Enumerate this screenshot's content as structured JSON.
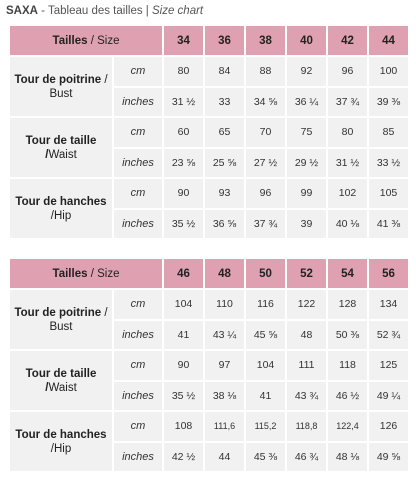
{
  "title": {
    "brand": "SAXA",
    "separator": " - ",
    "text": "Tableau des tailles |",
    "text_en": " Size chart"
  },
  "tables": [
    {
      "header": {
        "label_fr": "Tailles",
        "label_sep": " / ",
        "label_en": "Size",
        "sizes": [
          "34",
          "36",
          "38",
          "40",
          "42",
          "44"
        ]
      },
      "sections": [
        {
          "name_fr": "Tour de poitrine",
          "name_en": " / Bust",
          "rows": [
            {
              "unit": "cm",
              "values": [
                "80",
                "84",
                "88",
                "92",
                "96",
                "100"
              ]
            },
            {
              "unit": "inches",
              "values": [
                "31 ½",
                "33",
                "34 ⅝",
                "36 ¼",
                "37 ¾",
                "39 ⅜"
              ]
            }
          ]
        },
        {
          "name_fr": "Tour de taille /",
          "name_en": "Waist",
          "rows": [
            {
              "unit": "cm",
              "values": [
                "60",
                "65",
                "70",
                "75",
                "80",
                "85"
              ]
            },
            {
              "unit": "inches",
              "values": [
                "23 ⅝",
                "25 ⅝",
                "27 ½",
                "29 ½",
                "31 ½",
                "33 ½"
              ]
            }
          ]
        },
        {
          "name_fr": "Tour de hanches",
          "name_en": " /Hip",
          "rows": [
            {
              "unit": "cm",
              "values": [
                "90",
                "93",
                "96",
                "99",
                "102",
                "105"
              ]
            },
            {
              "unit": "inches",
              "values": [
                "35 ½",
                "36 ⅝",
                "37 ¾",
                "39",
                "40 ⅛",
                "41 ⅜"
              ]
            }
          ]
        }
      ]
    },
    {
      "header": {
        "label_fr": "Tailles",
        "label_sep": " / ",
        "label_en": "Size",
        "sizes": [
          "46",
          "48",
          "50",
          "52",
          "54",
          "56"
        ]
      },
      "sections": [
        {
          "name_fr": "Tour de poitrine",
          "name_en": " / Bust",
          "rows": [
            {
              "unit": "cm",
              "values": [
                "104",
                "110",
                "116",
                "122",
                "128",
                "134"
              ]
            },
            {
              "unit": "inches",
              "values": [
                "41",
                "43 ¼",
                "45 ⅝",
                "48",
                "50 ⅜",
                "52 ¾"
              ]
            }
          ]
        },
        {
          "name_fr": "Tour de taille /",
          "name_en": "Waist",
          "rows": [
            {
              "unit": "cm",
              "values": [
                "90",
                "97",
                "104",
                "111",
                "118",
                "125"
              ]
            },
            {
              "unit": "inches",
              "values": [
                "35 ½",
                "38 ⅛",
                "41",
                "43 ¾",
                "46 ½",
                "49 ¼"
              ]
            }
          ]
        },
        {
          "name_fr": "Tour de hanches",
          "name_en": " /Hip",
          "rows": [
            {
              "unit": "cm",
              "values": [
                "108",
                "111,6",
                "115,2",
                "118,8",
                "122,4",
                "126"
              ]
            },
            {
              "unit": "inches",
              "values": [
                "42 ½",
                "44",
                "45 ⅜",
                "46 ¾",
                "48 ⅛",
                "49 ⅝"
              ]
            }
          ]
        }
      ]
    }
  ]
}
